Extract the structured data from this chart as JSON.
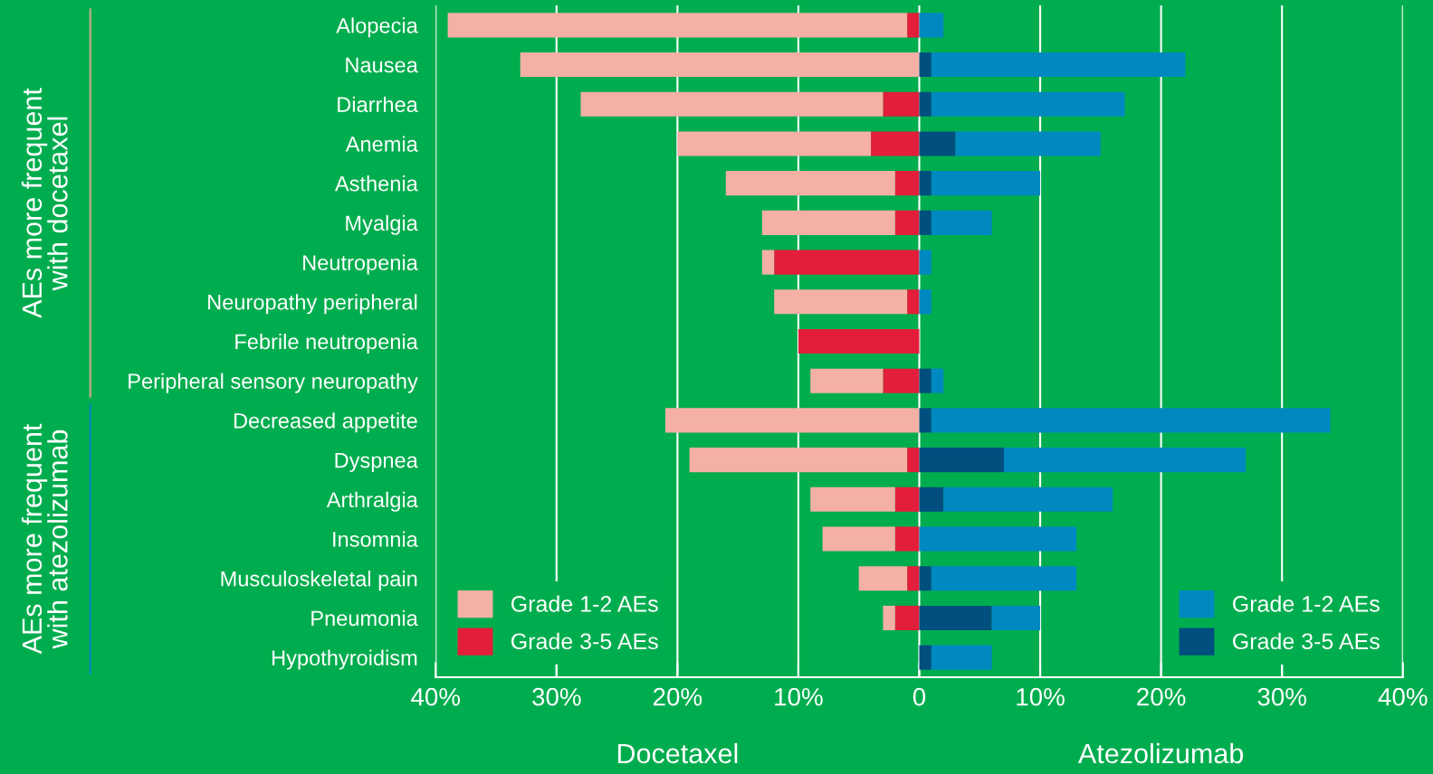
{
  "chart_data": {
    "type": "bar",
    "orientation": "horizontal",
    "stacked": true,
    "categories": [
      "Alopecia",
      "Nausea",
      "Diarrhea",
      "Anemia",
      "Asthenia",
      "Myalgia",
      "Neutropenia",
      "Neuropathy peripheral",
      "Febrile neutropenia",
      "Peripheral sensory neuropathy",
      "Decreased appetite",
      "Dyspnea",
      "Arthralgia",
      "Insomnia",
      "Musculoskeletal pain",
      "Pneumonia",
      "Hypothyroidism"
    ],
    "series": [
      {
        "name": "Grade 3-5 AEs",
        "color": "#e31e3a",
        "values": [
          -1,
          0,
          -3,
          -4,
          -2,
          -2,
          -12,
          -1,
          -10,
          -3,
          0,
          -1,
          -2,
          -2,
          -1,
          -2,
          0
        ]
      },
      {
        "name": "Grade 1-2 AEs",
        "color": "#f5b0a5",
        "values": [
          -38,
          -33,
          -25,
          -16,
          -14,
          -11,
          -1,
          -11,
          0,
          -6,
          -21,
          -18,
          -7,
          -6,
          -4,
          -1,
          0
        ]
      },
      {
        "name": "Grade 3-5 AEs",
        "color": "#004f7f",
        "values": [
          0,
          1,
          1,
          3,
          1,
          1,
          0,
          0,
          0,
          1,
          1,
          7,
          2,
          0,
          1,
          6,
          1
        ]
      },
      {
        "name": "Grade 1-2 AEs",
        "color": "#0088c0",
        "values": [
          2,
          21,
          16,
          12,
          9,
          5,
          1,
          1,
          0,
          1,
          33,
          20,
          14,
          13,
          12,
          4,
          5
        ]
      }
    ],
    "xlim": [
      -40,
      40
    ],
    "xticks": [
      {
        "value": -40,
        "label": "40%"
      },
      {
        "value": -30,
        "label": "30%"
      },
      {
        "value": -20,
        "label": "20%"
      },
      {
        "value": -10,
        "label": "10%"
      },
      0,
      {
        "value": 10,
        "label": "10%"
      },
      {
        "value": 20,
        "label": "20%"
      },
      {
        "value": 30,
        "label": "30%"
      },
      {
        "value": 40,
        "label": "40%"
      }
    ],
    "grid": "x",
    "legend": "bottom",
    "annotations": [
      "AEs more frequent\nwith docetaxel",
      "AEs more frequent\nwith atezolizumab",
      "Docetaxel",
      "Atezolizumab"
    ]
  }
}
